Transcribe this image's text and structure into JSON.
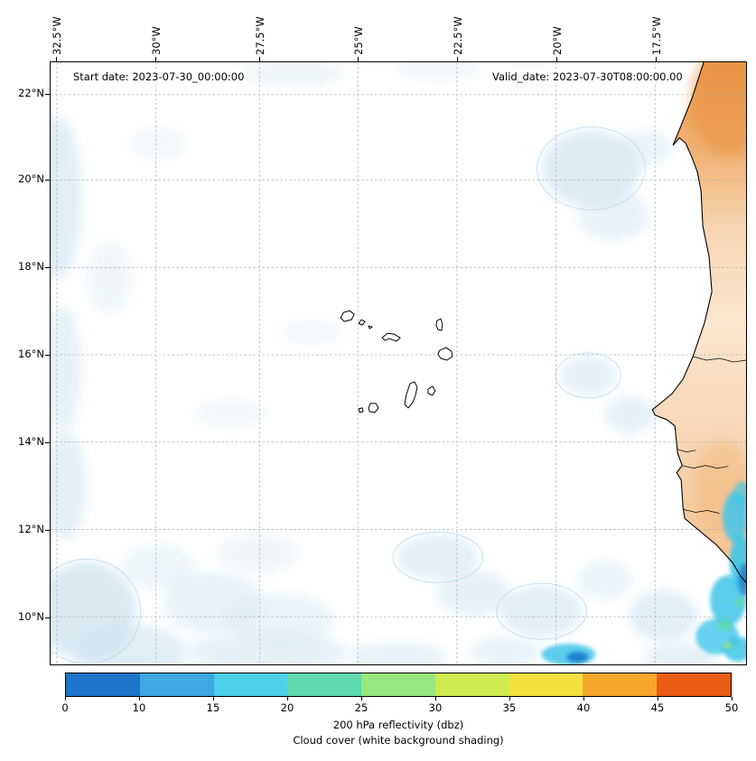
{
  "figure": {
    "start_date_label": "Start date: 2023-07-30_00:00:00",
    "valid_date_label": "Valid_date: 2023-07-30T08:00:00.00"
  },
  "axes": {
    "lon_ticks": [
      "32.5°W",
      "30°W",
      "27.5°W",
      "25°W",
      "22.5°W",
      "20°W",
      "17.5°W"
    ],
    "lat_ticks": [
      "22°N",
      "20°N",
      "18°N",
      "16°N",
      "14°N",
      "12°N",
      "10°N"
    ]
  },
  "colorbar": {
    "ticks": [
      "0",
      "10",
      "15",
      "20",
      "25",
      "30",
      "35",
      "40",
      "45",
      "50"
    ],
    "segment_colors": [
      "#1d76c9",
      "#3da8e2",
      "#4ccfe9",
      "#5fd9ae",
      "#98e67f",
      "#cdeb50",
      "#f3df3d",
      "#f7a62c",
      "#e95c15"
    ],
    "label_line1": "200 hPa reflectivity (dbz)",
    "label_line2": "Cloud cover (white background shading)"
  },
  "map": {
    "features": [
      "Cape Verde islands",
      "West African coastline"
    ],
    "land_color": "#f0ab64",
    "cloud_color": "#d3e7f1",
    "heavy_cloud_color": "#3fc6ea",
    "rain_core_color": "#1d78c9",
    "coastline_color": "#000000",
    "gridline_color": "#b3b3b3"
  }
}
